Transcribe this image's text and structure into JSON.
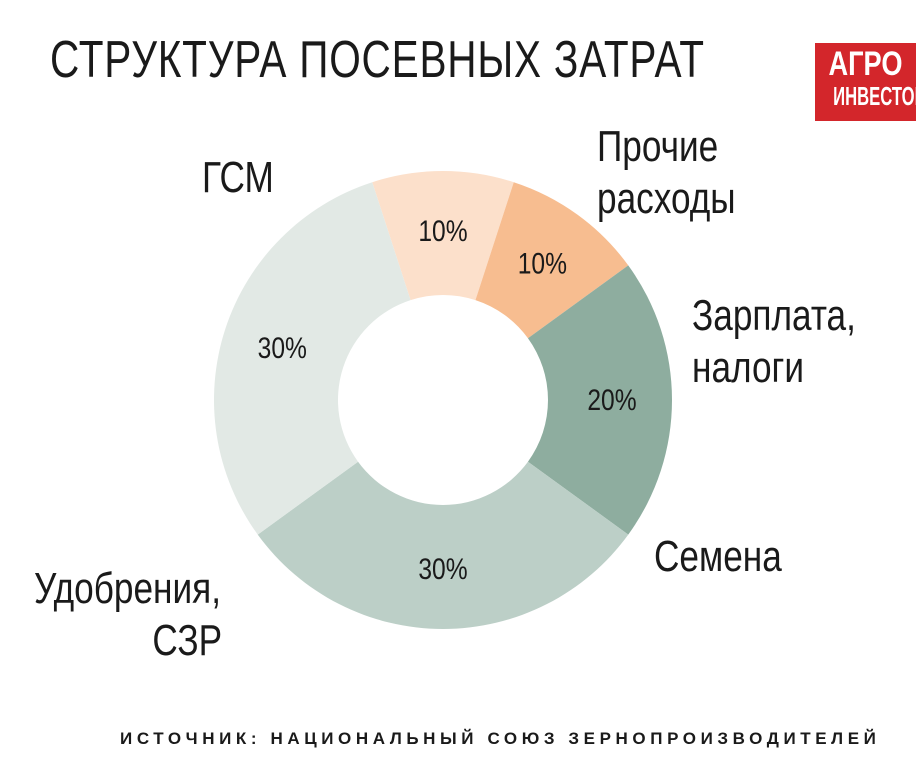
{
  "title": "СТРУКТУРА ПОСЕВНЫХ ЗАТРАТ",
  "logo": {
    "line1": "АГРО",
    "line2": "ИНВЕСТОР"
  },
  "source": "ИСТОЧНИК: НАЦИОНАЛЬНЫЙ СОЮЗ ЗЕРНОПРОИЗВОДИТЕЛЕЙ",
  "colors": {
    "gsm": "#e2e9e5",
    "prochie": "#fce0cb",
    "zarplata": "#f7bd90",
    "semena": "#8ead9f",
    "udobreniya": "#bccfc7",
    "logo": "#d3262b"
  },
  "chart_data": {
    "type": "pie",
    "title": "СТРУКТУРА ПОСЕВНЫХ ЗАТРАТ",
    "donut": true,
    "slices": [
      {
        "key": "prochie",
        "label_lines": [
          "Прочие",
          "расходы"
        ],
        "value": 10,
        "value_label": "10%"
      },
      {
        "key": "zarplata",
        "label_lines": [
          "Зарплата,",
          "налоги"
        ],
        "value": 10,
        "value_label": "10%"
      },
      {
        "key": "semena",
        "label_lines": [
          "Семена"
        ],
        "value": 20,
        "value_label": "20%"
      },
      {
        "key": "udobreniya",
        "label_lines": [
          "Удобрения,",
          "СЗР"
        ],
        "value": 30,
        "value_label": "30%"
      },
      {
        "key": "gsm",
        "label_lines": [
          "ГСМ"
        ],
        "value": 30,
        "value_label": "30%"
      }
    ]
  }
}
